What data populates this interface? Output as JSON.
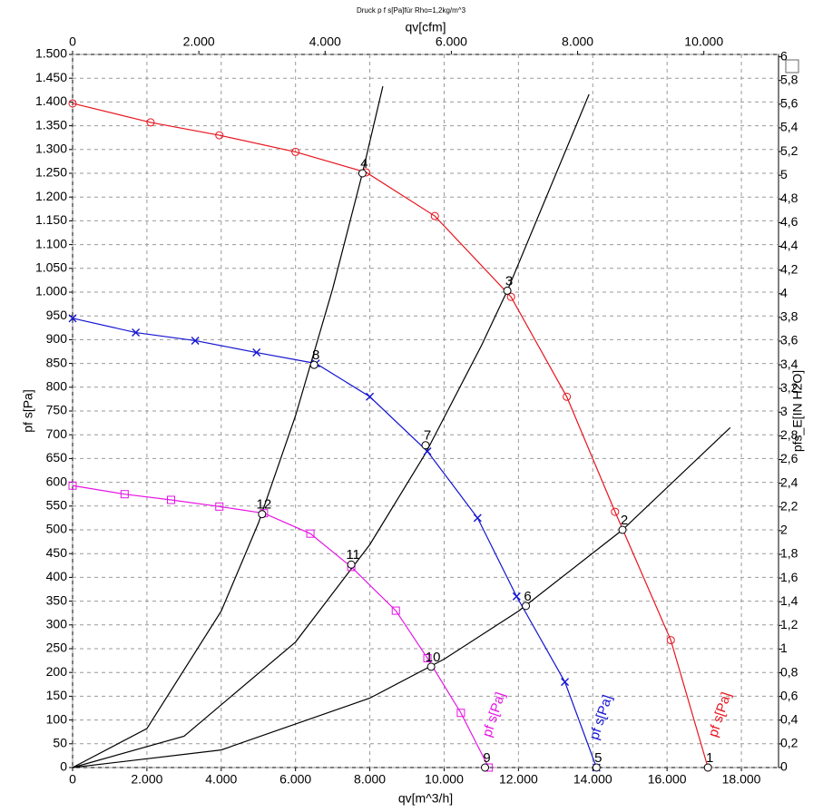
{
  "chart_data": {
    "type": "line",
    "title": "Druck p f s[Pa]für Rho=1,2kg/m^3",
    "x_label": "qv[m^3/h]",
    "x2_label": "qv[cfm]",
    "y_label": "pf s[Pa]",
    "y2_label": "pfs_E[IN H2O]",
    "xlim": [
      0,
      19000
    ],
    "xticks": [
      0,
      {
        "value": 2000,
        "label": "2.000"
      },
      {
        "value": 4000,
        "label": "4.000"
      },
      {
        "value": 6000,
        "label": "6.000"
      },
      {
        "value": 8000,
        "label": "8.000"
      },
      {
        "value": 10000,
        "label": "10.000"
      },
      {
        "value": 12000,
        "label": "12.000"
      },
      {
        "value": 14000,
        "label": "14.000"
      },
      {
        "value": 16000,
        "label": "16.000"
      },
      {
        "value": 18000,
        "label": "18.000"
      }
    ],
    "x2lim": [
      0,
      11183
    ],
    "x2ticks": [
      0,
      {
        "value": 2000,
        "label": "2.000"
      },
      {
        "value": 4000,
        "label": "4.000"
      },
      {
        "value": 6000,
        "label": "6.000"
      },
      {
        "value": 8000,
        "label": "8.000"
      },
      {
        "value": 10000,
        "label": "10.000"
      }
    ],
    "ylim": [
      0,
      1500
    ],
    "yticks": [
      0,
      50,
      100,
      150,
      200,
      250,
      300,
      350,
      400,
      450,
      500,
      550,
      600,
      650,
      700,
      750,
      800,
      850,
      900,
      950,
      {
        "value": 1000,
        "label": "1.000"
      },
      {
        "value": 1050,
        "label": "1.050"
      },
      {
        "value": 1100,
        "label": "1.100"
      },
      {
        "value": 1150,
        "label": "1.150"
      },
      {
        "value": 1200,
        "label": "1.200"
      },
      {
        "value": 1250,
        "label": "1.250"
      },
      {
        "value": 1300,
        "label": "1.300"
      },
      {
        "value": 1350,
        "label": "1.350"
      },
      {
        "value": 1400,
        "label": "1.400"
      },
      {
        "value": 1450,
        "label": "1.450"
      },
      {
        "value": 1500,
        "label": "1.500"
      }
    ],
    "y2lim": [
      0,
      6.02
    ],
    "y2ticks": [
      0,
      {
        "value": 0.2,
        "label": "0,2"
      },
      {
        "value": 0.4,
        "label": "0,4"
      },
      {
        "value": 0.6,
        "label": "0,6"
      },
      {
        "value": 0.8,
        "label": "0,8"
      },
      1,
      {
        "value": 1.2,
        "label": "1,2"
      },
      {
        "value": 1.4,
        "label": "1,4"
      },
      {
        "value": 1.6,
        "label": "1,6"
      },
      {
        "value": 1.8,
        "label": "1,8"
      },
      2,
      {
        "value": 2.2,
        "label": "2,2"
      },
      {
        "value": 2.4,
        "label": "2,4"
      },
      {
        "value": 2.6,
        "label": "2,6"
      },
      {
        "value": 2.8,
        "label": "2,8"
      },
      3,
      {
        "value": 3.2,
        "label": "3,2"
      },
      {
        "value": 3.4,
        "label": "3,4"
      },
      {
        "value": 3.6,
        "label": "3,6"
      },
      {
        "value": 3.8,
        "label": "3,8"
      },
      4,
      {
        "value": 4.2,
        "label": "4,2"
      },
      {
        "value": 4.4,
        "label": "4,4"
      },
      {
        "value": 4.6,
        "label": "4,6"
      },
      {
        "value": 4.8,
        "label": "4,8"
      },
      5,
      {
        "value": 5.2,
        "label": "5,2"
      },
      {
        "value": 5.4,
        "label": "5,4"
      },
      {
        "value": 5.6,
        "label": "5,6"
      },
      {
        "value": 5.8,
        "label": "5,8"
      },
      6
    ],
    "grid": true,
    "series": [
      {
        "name": "pf s[Pa]",
        "color": "#e8141e",
        "marker": "circle",
        "x": [
          0,
          2100,
          3950,
          6000,
          7900,
          9750,
          11800,
          13300,
          14600,
          16100,
          17100
        ],
        "values": [
          1397,
          1357,
          1330,
          1295,
          1252,
          1160,
          990,
          780,
          538,
          268,
          0
        ]
      },
      {
        "name": "pf s[Pa]",
        "color": "#1414d2",
        "marker": "cross",
        "x": [
          0,
          1700,
          3300,
          4950,
          6550,
          8000,
          9550,
          10900,
          11950,
          13250,
          14100
        ],
        "values": [
          945,
          915,
          898,
          873,
          850,
          780,
          665,
          525,
          360,
          180,
          0
        ]
      },
      {
        "name": "pf s[Pa]",
        "color": "#e614e6",
        "marker": "square",
        "x": [
          0,
          1400,
          2650,
          3950,
          5150,
          6400,
          7500,
          8700,
          9550,
          10450,
          11200
        ],
        "values": [
          593,
          575,
          563,
          549,
          535,
          492,
          422,
          330,
          230,
          115,
          0
        ]
      }
    ],
    "system_curves": [
      {
        "color": "#000000",
        "x": [
          0,
          2000,
          4000,
          5000,
          6000,
          7000,
          7800,
          8350
        ],
        "values": [
          0,
          82,
          329,
          514,
          740,
          1007,
          1250,
          1433
        ]
      },
      {
        "color": "#000000",
        "x": [
          0,
          3000,
          6000,
          8000,
          9500,
          11000,
          11700,
          13900
        ],
        "values": [
          0,
          66,
          264,
          469,
          661,
          887,
          1003,
          1416
        ]
      },
      {
        "color": "#000000",
        "x": [
          0,
          4000,
          8000,
          10000,
          12000,
          14800,
          17700
        ],
        "values": [
          0,
          37,
          146,
          228,
          329,
          500,
          715
        ]
      }
    ],
    "points": [
      {
        "label": "1",
        "x": 17100,
        "y": 0
      },
      {
        "label": "2",
        "x": 14800,
        "y": 500
      },
      {
        "label": "3",
        "x": 11700,
        "y": 1003
      },
      {
        "label": "4",
        "x": 7800,
        "y": 1250
      },
      {
        "label": "5",
        "x": 14100,
        "y": 0
      },
      {
        "label": "6",
        "x": 12200,
        "y": 340
      },
      {
        "label": "7",
        "x": 9500,
        "y": 678
      },
      {
        "label": "8",
        "x": 6500,
        "y": 847
      },
      {
        "label": "9",
        "x": 11100,
        "y": 0
      },
      {
        "label": "10",
        "x": 9650,
        "y": 212
      },
      {
        "label": "11",
        "x": 7500,
        "y": 427
      },
      {
        "label": "12",
        "x": 5100,
        "y": 533
      }
    ]
  }
}
